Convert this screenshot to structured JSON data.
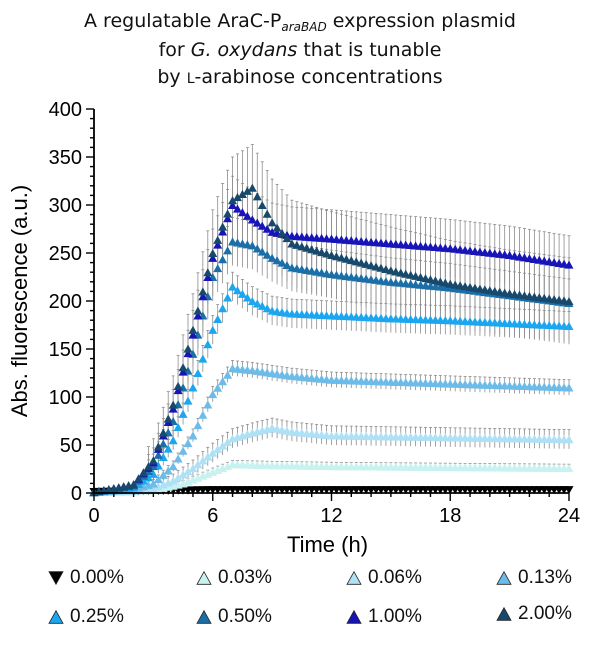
{
  "chart_data": {
    "type": "scatter",
    "title": {
      "line1_pre": "A regulatable AraC-P",
      "line1_sub": "araBAD",
      "line1_post": " expression plasmid",
      "line2_pre": "for ",
      "line2_it": "G. oxydans",
      "line2_post": " that is tunable",
      "line3_pre": "by ",
      "line3_sc": "L",
      "line3_post": "-arabinose concentrations"
    },
    "xlabel": "Time (h)",
    "ylabel": "Abs. fluorescence (a.u.)",
    "xlim": [
      0,
      24
    ],
    "ylim": [
      0,
      400
    ],
    "xticks": [
      0,
      6,
      12,
      18,
      24
    ],
    "yticks": [
      0,
      50,
      100,
      150,
      200,
      250,
      300,
      350,
      400
    ],
    "x_tick_labels": [
      "0",
      "6",
      "12",
      "18",
      "24"
    ],
    "y_tick_labels": [
      "0",
      "50",
      "100",
      "150",
      "200",
      "250",
      "300",
      "350",
      "400"
    ],
    "legend_position": "bottom",
    "series": [
      {
        "name": "0.00%",
        "color": "#000000",
        "marker": "triangle-down",
        "points": [
          [
            0,
            1
          ],
          [
            3,
            2
          ],
          [
            6,
            3
          ],
          [
            9,
            3
          ],
          [
            12,
            3
          ],
          [
            18,
            3
          ],
          [
            24,
            3
          ]
        ],
        "err": 2
      },
      {
        "name": "0.03%",
        "color": "#c8f2f0",
        "marker": "triangle-up",
        "points": [
          [
            0,
            1
          ],
          [
            3,
            3
          ],
          [
            4.5,
            10
          ],
          [
            6,
            22
          ],
          [
            7,
            30
          ],
          [
            9,
            29
          ],
          [
            12,
            28
          ],
          [
            18,
            27
          ],
          [
            24,
            26
          ]
        ],
        "err": 4
      },
      {
        "name": "0.06%",
        "color": "#aee1f5",
        "marker": "triangle-up",
        "points": [
          [
            0,
            1
          ],
          [
            2,
            2
          ],
          [
            3,
            5
          ],
          [
            4,
            13
          ],
          [
            5,
            26
          ],
          [
            6,
            42
          ],
          [
            7,
            57
          ],
          [
            8,
            63
          ],
          [
            9,
            68
          ],
          [
            10,
            64
          ],
          [
            12,
            60
          ],
          [
            15,
            59
          ],
          [
            18,
            58
          ],
          [
            21,
            57
          ],
          [
            24,
            56
          ]
        ],
        "err": 10
      },
      {
        "name": "0.13%",
        "color": "#6cbbe8",
        "marker": "triangle-up",
        "points": [
          [
            0,
            1
          ],
          [
            2,
            4
          ],
          [
            3,
            10
          ],
          [
            4,
            28
          ],
          [
            5,
            60
          ],
          [
            6,
            103
          ],
          [
            7,
            130
          ],
          [
            8,
            128
          ],
          [
            10,
            122
          ],
          [
            12,
            118
          ],
          [
            15,
            116
          ],
          [
            18,
            114
          ],
          [
            21,
            112
          ],
          [
            24,
            110
          ]
        ],
        "err": 8
      },
      {
        "name": "0.25%",
        "color": "#1ba6f0",
        "marker": "triangle-up",
        "points": [
          [
            0,
            1
          ],
          [
            2,
            6
          ],
          [
            3,
            20
          ],
          [
            4,
            55
          ],
          [
            5,
            110
          ],
          [
            6,
            170
          ],
          [
            7,
            215
          ],
          [
            8,
            200
          ],
          [
            9,
            190
          ],
          [
            10,
            187
          ],
          [
            12,
            185
          ],
          [
            15,
            182
          ],
          [
            18,
            180
          ],
          [
            21,
            177
          ],
          [
            24,
            174
          ]
        ],
        "err": 15
      },
      {
        "name": "0.50%",
        "color": "#1b6fa8",
        "marker": "triangle-up",
        "points": [
          [
            0,
            1
          ],
          [
            2,
            8
          ],
          [
            3,
            28
          ],
          [
            4,
            75
          ],
          [
            5,
            145
          ],
          [
            6,
            225
          ],
          [
            7,
            262
          ],
          [
            8,
            258
          ],
          [
            9,
            245
          ],
          [
            10,
            235
          ],
          [
            12,
            228
          ],
          [
            15,
            220
          ],
          [
            18,
            214
          ],
          [
            21,
            206
          ],
          [
            24,
            198
          ]
        ],
        "err": 25
      },
      {
        "name": "1.00%",
        "color": "#1714b8",
        "marker": "triangle-up",
        "points": [
          [
            0,
            1
          ],
          [
            2,
            9
          ],
          [
            3,
            32
          ],
          [
            4,
            88
          ],
          [
            5,
            165
          ],
          [
            6,
            245
          ],
          [
            7,
            300
          ],
          [
            8,
            285
          ],
          [
            9,
            272
          ],
          [
            10,
            268
          ],
          [
            12,
            265
          ],
          [
            15,
            260
          ],
          [
            18,
            255
          ],
          [
            21,
            248
          ],
          [
            24,
            238
          ]
        ],
        "err": 30
      },
      {
        "name": "2.00%",
        "color": "#17496c",
        "marker": "triangle-up",
        "points": [
          [
            0,
            1
          ],
          [
            2,
            9
          ],
          [
            3,
            34
          ],
          [
            4,
            92
          ],
          [
            5,
            170
          ],
          [
            6,
            250
          ],
          [
            7,
            305
          ],
          [
            8,
            318
          ],
          [
            9,
            282
          ],
          [
            10,
            260
          ],
          [
            12,
            248
          ],
          [
            15,
            232
          ],
          [
            18,
            218
          ],
          [
            21,
            208
          ],
          [
            24,
            200
          ]
        ],
        "err": 45
      }
    ]
  }
}
